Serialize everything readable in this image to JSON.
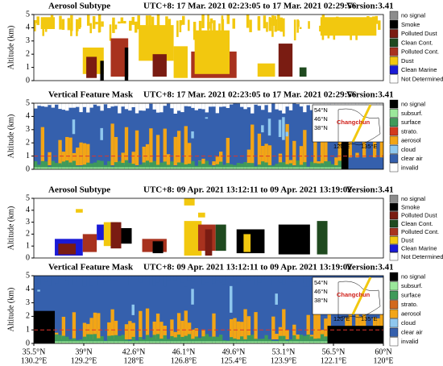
{
  "chart_data": [
    {
      "type": "curtain",
      "title": "Aerosol Subtype",
      "time": "UTC+8:  17 Mar. 2021  02:23:05  to 17 Mar. 2021  02:29:56",
      "version": "Version:3.41",
      "ylabel": "Altitude (km)",
      "ylim": [
        0,
        5
      ],
      "yticks": [
        0,
        1,
        2,
        3,
        4,
        5
      ],
      "legend": [
        {
          "name": "no signal",
          "color": "#8c8c8c"
        },
        {
          "name": "Smoke",
          "color": "#000000"
        },
        {
          "name": "Polluted Dust",
          "color": "#7a1c12"
        },
        {
          "name": "Clean Cont.",
          "color": "#1f4a1f"
        },
        {
          "name": "Polluted Cont.",
          "color": "#a8321e"
        },
        {
          "name": "Dust",
          "color": "#f2c80f"
        },
        {
          "name": "Clean Marine",
          "color": "#1a1ad6"
        },
        {
          "name": "Not Determined",
          "color": "#ffffff"
        }
      ]
    },
    {
      "type": "curtain",
      "title": "Vertical Feature Mask",
      "time": "UTC+8:  17 Mar. 2021  02:23:05  to 17 Mar. 2021  02:29:56",
      "version": "Version:3.41",
      "ylabel": "Altitude (km)",
      "ylim": [
        0,
        5
      ],
      "yticks": [
        0,
        1,
        2,
        3,
        4,
        5
      ],
      "reference_line": 1,
      "map_labels": [
        "54°N",
        "46°N",
        "38°N",
        "120°E",
        "135°E",
        "Changchun"
      ],
      "legend": [
        {
          "name": "no signal",
          "color": "#000000"
        },
        {
          "name": "subsurf.",
          "color": "#9be89b"
        },
        {
          "name": "surface",
          "color": "#3f9a5a"
        },
        {
          "name": "strato.",
          "color": "#d23a1e"
        },
        {
          "name": "aerosol",
          "color": "#f2a516"
        },
        {
          "name": "cloud",
          "color": "#8fc8ee"
        },
        {
          "name": "clear air",
          "color": "#3560ad"
        },
        {
          "name": "invalid",
          "color": "#ffffff"
        }
      ]
    },
    {
      "type": "curtain",
      "title": "Aerosol Subtype",
      "time": "UTC+8:  09 Apr. 2021  13:12:11  to 09 Apr. 2021  13:19:02",
      "version": "Version:3.41",
      "ylabel": "Altitude (km)",
      "ylim": [
        0,
        5
      ],
      "yticks": [
        0,
        1,
        2,
        3,
        4,
        5
      ],
      "legend": [
        {
          "name": "no signal",
          "color": "#8c8c8c"
        },
        {
          "name": "Smoke",
          "color": "#000000"
        },
        {
          "name": "Polluted Dust",
          "color": "#7a1c12"
        },
        {
          "name": "Clean Cont.",
          "color": "#1f4a1f"
        },
        {
          "name": "Polluted Cont.",
          "color": "#a8321e"
        },
        {
          "name": "Dust",
          "color": "#f2c80f"
        },
        {
          "name": "Clean Marine",
          "color": "#1a1ad6"
        },
        {
          "name": "Not Determined",
          "color": "#ffffff"
        }
      ]
    },
    {
      "type": "curtain",
      "title": "Vertical Feature Mask",
      "time": "UTC+8:  09 Apr. 2021  13:12:11  to 09 Apr. 2021  13:19:02",
      "version": "Version:3.41",
      "ylabel": "Altitude (km)",
      "ylim": [
        0,
        5
      ],
      "yticks": [
        0,
        1,
        2,
        3,
        4,
        5
      ],
      "reference_line": 1,
      "map_labels": [
        "54°N",
        "46°N",
        "38°N",
        "120°E",
        "135°E",
        "Changchun"
      ],
      "legend": [
        {
          "name": "no signal",
          "color": "#000000"
        },
        {
          "name": "subsurf.",
          "color": "#9be89b"
        },
        {
          "name": "surface",
          "color": "#3f9a5a"
        },
        {
          "name": "strato.",
          "color": "#d2691e"
        },
        {
          "name": "aerosol",
          "color": "#f2a516"
        },
        {
          "name": "cloud",
          "color": "#8fc8ee"
        },
        {
          "name": "clear air",
          "color": "#3560ad"
        },
        {
          "name": "invalid",
          "color": "#ffffff"
        }
      ],
      "xticks": [
        {
          "lat": "35.5°N",
          "lon": "130.2°E"
        },
        {
          "lat": "39°N",
          "lon": "129.2°E"
        },
        {
          "lat": "42.6°N",
          "lon": "128°E"
        },
        {
          "lat": "46.1°N",
          "lon": "126.8°E"
        },
        {
          "lat": "49.6°N",
          "lon": "125.4°E"
        },
        {
          "lat": "53.1°N",
          "lon": "123.9°E"
        },
        {
          "lat": "56.5°N",
          "lon": "122.1°E"
        },
        {
          "lat": "60°N",
          "lon": "120°E"
        }
      ]
    }
  ]
}
